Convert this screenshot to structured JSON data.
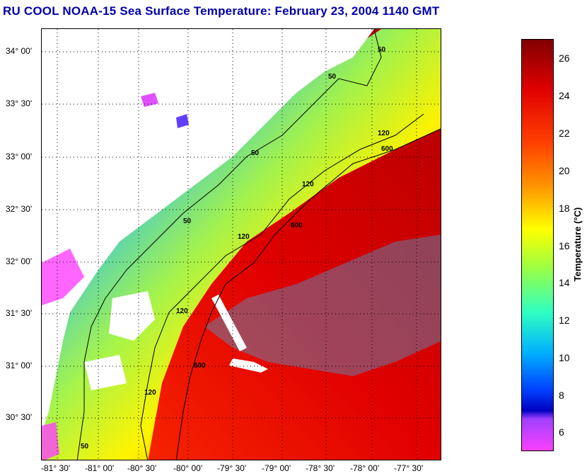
{
  "title": "RU COOL  NOAA-15  Sea Surface Temperature:  February 23, 2004 1140 GMT",
  "map": {
    "lat_labels": [
      "34° 00'",
      "33° 30'",
      "33° 00'",
      "32° 30'",
      "32° 00'",
      "31° 30'",
      "31° 00'",
      "30° 30'"
    ],
    "lon_labels": [
      "-81° 30'",
      "-81° 00'",
      "-80° 30'",
      "-80° 00'",
      "-79° 30'",
      "-79° 00'",
      "-78° 30'",
      "-78° 00'",
      "-77° 30'"
    ],
    "contour_labels": [
      "50",
      "50",
      "50",
      "50",
      "50",
      "120",
      "120",
      "120",
      "120",
      "120",
      "600",
      "600",
      "600"
    ]
  },
  "colorbar": {
    "label": "Temperature (°C)",
    "ticks": [
      "26",
      "24",
      "22",
      "20",
      "18",
      "16",
      "14",
      "12",
      "10",
      "8",
      "6"
    ],
    "min": 5,
    "max": 27
  },
  "colors": {
    "title": "#0000a8",
    "land": "#ffffff",
    "grid": "#000000"
  }
}
